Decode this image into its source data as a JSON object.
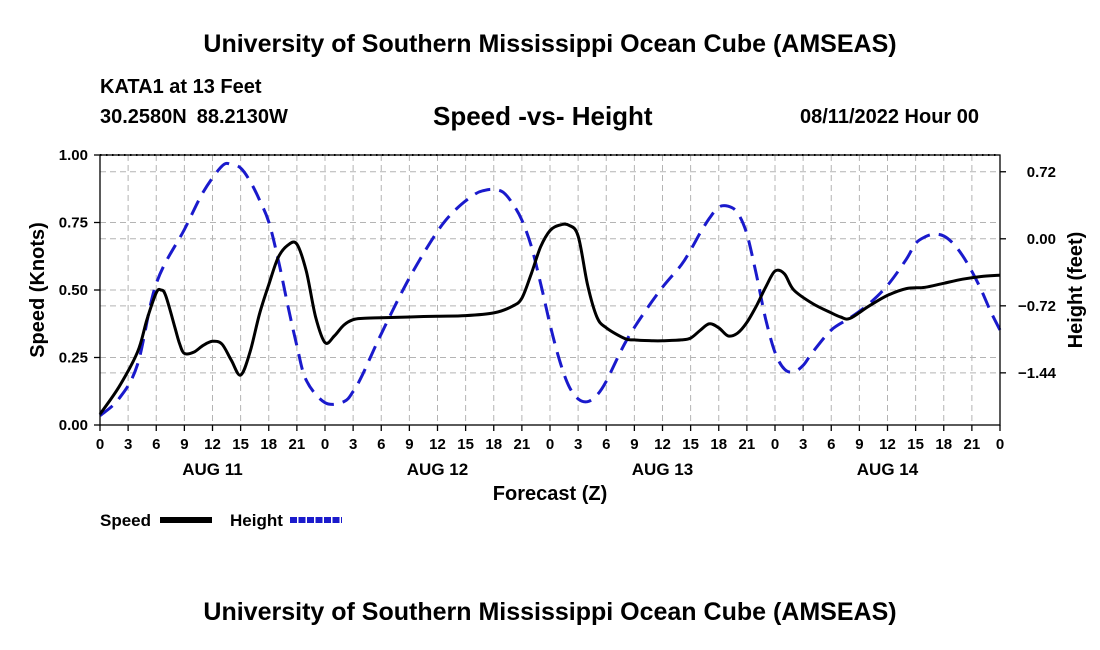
{
  "header": {
    "title": "University of Southern Mississippi Ocean Cube (AMSEAS)",
    "station": "KATA1 at 13 Feet",
    "lat": "30.2580N",
    "lon": "88.2130W",
    "subtitle": "Speed -vs- Height",
    "datetime": "08/11/2022 Hour 00"
  },
  "footer": {
    "title": "University of Southern Mississippi Ocean Cube (AMSEAS)"
  },
  "chart_data": {
    "type": "line",
    "title": "Speed -vs- Height",
    "xlabel": "Forecast (Z)",
    "ylabel": "Speed (Knots)",
    "y2label": "Height (feet)",
    "x_unit": "forecast hours from 08/11/2022 00Z",
    "xlim": [
      0,
      96
    ],
    "ylim": [
      0,
      1.0
    ],
    "y2lim": [
      -2.0,
      0.9
    ],
    "x_ticks": [
      0,
      3,
      6,
      9,
      12,
      15,
      18,
      21,
      24,
      27,
      30,
      33,
      36,
      39,
      42,
      45,
      48,
      51,
      54,
      57,
      60,
      63,
      66,
      69,
      72,
      75,
      78,
      81,
      84,
      87,
      90,
      93,
      96
    ],
    "x_tick_labels": [
      "0",
      "3",
      "6",
      "9",
      "12",
      "15",
      "18",
      "21",
      "0",
      "3",
      "6",
      "9",
      "12",
      "15",
      "18",
      "21",
      "0",
      "3",
      "6",
      "9",
      "12",
      "15",
      "18",
      "21",
      "0",
      "3",
      "6",
      "9",
      "12",
      "15",
      "18",
      "21",
      "0"
    ],
    "y_ticks": [
      0.0,
      0.25,
      0.5,
      0.75,
      1.0
    ],
    "y_tick_labels": [
      "0.00",
      "0.25",
      "0.50",
      "0.75",
      "1.00"
    ],
    "y2_ticks": [
      0.72,
      0.0,
      -0.72,
      -1.44
    ],
    "y2_tick_labels": [
      "0.72",
      "0.00",
      "−0.72",
      "−1.44"
    ],
    "day_labels": [
      {
        "x": 12,
        "label": "AUG 11"
      },
      {
        "x": 36,
        "label": "AUG 12"
      },
      {
        "x": 60,
        "label": "AUG 13"
      },
      {
        "x": 84,
        "label": "AUG 14"
      }
    ],
    "grid": true,
    "legend": [
      {
        "name": "Speed",
        "color": "#000000",
        "dash": "solid"
      },
      {
        "name": "Height",
        "color": "#1a1acc",
        "dash": "dashed"
      }
    ],
    "series": [
      {
        "name": "Speed",
        "axis": "left",
        "color": "#000000",
        "x": [
          0,
          2,
          4,
          5,
          6,
          6.5,
          7,
          8,
          8.5,
          9,
          10,
          11,
          12,
          13,
          14,
          15,
          16,
          17,
          18,
          19,
          20,
          21,
          22,
          23,
          24,
          25,
          26,
          27,
          28,
          30,
          33,
          36,
          39,
          42,
          44,
          45,
          46,
          47,
          48,
          49,
          50,
          51,
          52,
          53,
          54,
          56,
          57,
          59,
          60,
          62,
          63,
          64,
          65,
          66,
          67,
          68,
          69,
          70,
          71,
          72,
          73,
          74,
          76,
          78,
          79,
          80,
          82,
          84,
          86,
          88,
          90,
          92,
          94,
          96
        ],
        "y": [
          0.04,
          0.14,
          0.27,
          0.39,
          0.49,
          0.5,
          0.48,
          0.36,
          0.3,
          0.265,
          0.27,
          0.295,
          0.31,
          0.3,
          0.24,
          0.185,
          0.27,
          0.41,
          0.52,
          0.62,
          0.665,
          0.67,
          0.57,
          0.4,
          0.305,
          0.33,
          0.37,
          0.39,
          0.395,
          0.397,
          0.4,
          0.403,
          0.405,
          0.415,
          0.44,
          0.47,
          0.56,
          0.66,
          0.72,
          0.74,
          0.74,
          0.7,
          0.52,
          0.4,
          0.36,
          0.32,
          0.315,
          0.312,
          0.312,
          0.315,
          0.322,
          0.35,
          0.375,
          0.36,
          0.33,
          0.34,
          0.38,
          0.44,
          0.51,
          0.57,
          0.56,
          0.5,
          0.45,
          0.415,
          0.4,
          0.395,
          0.44,
          0.48,
          0.505,
          0.51,
          0.525,
          0.54,
          0.55,
          0.555
        ]
      },
      {
        "name": "Height",
        "axis": "right",
        "color": "#1a1acc",
        "x": [
          0,
          2,
          4,
          6,
          9,
          11,
          13,
          14,
          15,
          16,
          17,
          18,
          19,
          20,
          21,
          22,
          24,
          26,
          27,
          28,
          30,
          33,
          36,
          38,
          40,
          41,
          42,
          43,
          44,
          45,
          46,
          47,
          48,
          49,
          50,
          51,
          52,
          53,
          54,
          56,
          58,
          60,
          62,
          63,
          64,
          65,
          66,
          67,
          68,
          69,
          70,
          71,
          72,
          73,
          74,
          75,
          76,
          78,
          80,
          82,
          84,
          86,
          87,
          88,
          89,
          90,
          91,
          92,
          93,
          94,
          95,
          96
        ],
        "y": [
          -1.9,
          -1.72,
          -1.35,
          -0.48,
          0.1,
          0.5,
          0.78,
          0.8,
          0.76,
          0.62,
          0.42,
          0.18,
          -0.22,
          -0.7,
          -1.15,
          -1.52,
          -1.76,
          -1.75,
          -1.64,
          -1.46,
          -1.02,
          -0.42,
          0.08,
          0.32,
          0.48,
          0.52,
          0.53,
          0.5,
          0.38,
          0.2,
          -0.08,
          -0.48,
          -0.92,
          -1.3,
          -1.58,
          -1.72,
          -1.75,
          -1.68,
          -1.53,
          -1.12,
          -0.8,
          -0.52,
          -0.28,
          -0.12,
          0.06,
          0.22,
          0.34,
          0.35,
          0.28,
          0.05,
          -0.38,
          -0.86,
          -1.22,
          -1.4,
          -1.43,
          -1.36,
          -1.22,
          -0.98,
          -0.85,
          -0.7,
          -0.5,
          -0.22,
          -0.05,
          0.02,
          0.05,
          0.03,
          -0.05,
          -0.18,
          -0.35,
          -0.55,
          -0.78,
          -0.98
        ]
      }
    ]
  }
}
